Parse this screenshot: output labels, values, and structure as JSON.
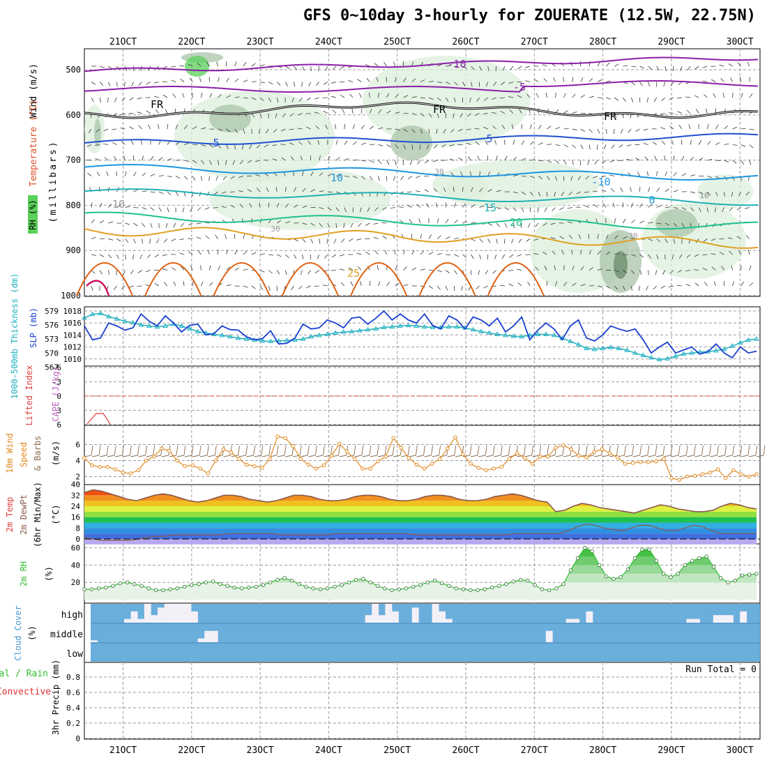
{
  "title": "GFS 0~10day 3-hourly for ZOUERATE (12.5W, 22.75N)",
  "date_ticks": [
    "21OCT",
    "22OCT",
    "23OCT",
    "24OCT",
    "25OCT",
    "26OCT",
    "27OCT",
    "28OCT",
    "29OCT",
    "30OCT"
  ],
  "colors": {
    "temp_cold": "#8a1ea8",
    "temp_zero": "#000000",
    "temp_5": "#1f4fd1",
    "temp_10": "#1e96e0",
    "temp_15": "#1fb2b5",
    "temp_20": "#20c090",
    "temp_25": "#e0a020",
    "temp_30": "#e06010",
    "temp_35": "#d01060",
    "rh_light": "#dcefdc",
    "rh_mid": "#a9c4a9",
    "rh_dark": "#6a8a6a",
    "rh_green": "#5ad05a",
    "slp": "#1a3fd0",
    "thickness": "#20b0c0",
    "wind10": "#e08820",
    "barb_brown": "#8a6a4a",
    "cloud": "#6aaedc",
    "rh2m": "#32c032"
  },
  "panels": {
    "upper_air": {
      "ylabel_wind": "Wind (m/s)",
      "ylabel_temp": "Temperature (°C)",
      "ylabel_rh": "RH (%)",
      "ylabel_mb": "(millibars)",
      "yticks": [
        "500",
        "600",
        "700",
        "800",
        "900",
        "1000"
      ],
      "contour_labels": [
        {
          "text": "-10"
        },
        {
          "text": "-5"
        },
        {
          "text": "FR"
        },
        {
          "text": "FR"
        },
        {
          "text": "FR"
        },
        {
          "text": "5"
        },
        {
          "text": "5"
        },
        {
          "text": "10"
        },
        {
          "text": "-10"
        },
        {
          "text": "10"
        },
        {
          "text": "15"
        },
        {
          "text": "20"
        },
        {
          "text": "25"
        },
        {
          "text": "0"
        },
        {
          "text": "30"
        },
        {
          "text": "30"
        },
        {
          "text": "30"
        },
        {
          "text": "10"
        }
      ]
    },
    "slp": {
      "ylabel_thk": "1000-500mb Thickness (dm)",
      "ylabel_slp": "SLP (mb)",
      "yticks_thk": [
        "579",
        "576",
        "573",
        "570",
        "567"
      ],
      "yticks_slp": [
        "1018",
        "1016",
        "1014",
        "1012",
        "1010"
      ]
    },
    "li": {
      "ylabel_li": "Lifted Index",
      "ylabel_cape": "CAPE (J/kg)",
      "yticks": [
        "-6",
        "-3",
        "0",
        "3",
        "6"
      ]
    },
    "wind10": {
      "ylabel_a": "10m Wind",
      "ylabel_b": "Speed",
      "ylabel_c": "& Barbs",
      "ylabel_unit": "(m/s)",
      "yticks": [
        "6",
        "4",
        "2"
      ]
    },
    "temp2m": {
      "ylabel_a": "2m Temp",
      "ylabel_b": "2m DewPt",
      "ylabel_c": "(6hr Min/Max)",
      "ylabel_unit": "(°C)",
      "yticks": [
        "40",
        "32",
        "24",
        "16",
        "8",
        "0"
      ]
    },
    "rh2m": {
      "ylabel": "2m RH",
      "ylabel_unit": "(%)",
      "yticks": [
        "60",
        "40",
        "20"
      ]
    },
    "cloud": {
      "ylabel": "Cloud Cover",
      "ylabel_unit": "(%)",
      "levels": [
        "high",
        "middle",
        "low"
      ]
    },
    "precip": {
      "ylabel_a": "Total / Rain",
      "ylabel_b": "Convective",
      "ylabel_c": "3hr Precip (mm)",
      "yticks": [
        "0.8",
        "0.6",
        "0.4",
        "0.2",
        "0"
      ],
      "run_total": "Run Total = 0"
    }
  },
  "chart_data": [
    {
      "type": "line",
      "title": "SLP (mb)",
      "x_unit": "3-hourly steps from 20 OCT 12Z",
      "ylim": [
        1009,
        1019
      ],
      "series": [
        {
          "name": "SLP (mb)",
          "values": [
            1015.5,
            1013.2,
            1013.5,
            1016.0,
            1015.5,
            1014.8,
            1015.2,
            1017.5,
            1016.3,
            1015.5,
            1017.2,
            1016.0,
            1014.5,
            1015.6,
            1015.8,
            1014.0,
            1014.2,
            1015.5,
            1014.9,
            1014.8,
            1013.7,
            1013.2,
            1013.4,
            1014.7,
            1012.5,
            1012.6,
            1013.5,
            1015.8,
            1015.0,
            1015.2,
            1016.5,
            1016.0,
            1015.2,
            1016.8,
            1017.0,
            1015.8,
            1016.8,
            1018.0,
            1016.5,
            1017.5,
            1016.5,
            1016.0,
            1017.5,
            1015.6,
            1015.0,
            1017.2,
            1016.5,
            1015.0,
            1017.0,
            1016.5,
            1015.5,
            1016.8,
            1014.5,
            1015.5,
            1017.0,
            1013.2,
            1014.8,
            1016.0,
            1015.0,
            1013.2,
            1015.5,
            1016.5,
            1013.5,
            1013.0,
            1014.0,
            1015.5,
            1015.0,
            1014.6,
            1015.0,
            1013.2,
            1011.0,
            1012.0,
            1012.8,
            1011.0,
            1011.5,
            1012.0,
            1010.8,
            1011.2,
            1012.5,
            1011.0,
            1010.2,
            1012.0,
            1011.0,
            1011.3
          ]
        },
        {
          "name": "1000-500mb Thickness (dm)",
          "values": [
            577.5,
            578.3,
            578.5,
            577.8,
            577.3,
            576.8,
            576.5,
            576.0,
            575.8,
            575.6,
            575.8,
            576.2,
            575.8,
            575.2,
            574.6,
            574.3,
            574.0,
            573.8,
            573.5,
            573.2,
            573.0,
            572.8,
            572.6,
            572.5,
            572.6,
            572.7,
            572.8,
            573.0,
            573.5,
            573.8,
            574.0,
            574.3,
            574.5,
            574.6,
            574.8,
            575.0,
            575.2,
            575.5,
            575.6,
            575.8,
            575.9,
            575.8,
            575.6,
            575.5,
            575.5,
            575.6,
            575.6,
            575.4,
            575.0,
            574.6,
            574.3,
            574.0,
            573.8,
            573.6,
            573.5,
            573.8,
            574.0,
            574.0,
            573.8,
            573.2,
            572.5,
            571.8,
            571.0,
            570.8,
            571.0,
            571.2,
            571.0,
            570.6,
            570.0,
            569.5,
            569.0,
            568.6,
            568.8,
            569.3,
            569.8,
            570.0,
            570.2,
            570.3,
            570.5,
            570.8,
            571.5,
            572.2,
            572.8,
            573.0
          ]
        }
      ]
    },
    {
      "type": "line",
      "title": "10m Wind Speed (m/s)",
      "ylim": [
        1,
        7.5
      ],
      "series": [
        {
          "name": "10m Wind Speed",
          "values": [
            4.3,
            3.4,
            3.2,
            3.2,
            2.9,
            2.5,
            2.4,
            2.8,
            4.0,
            4.5,
            5.5,
            5.2,
            4.0,
            3.3,
            3.4,
            3.0,
            2.4,
            4.0,
            5.4,
            5.0,
            4.2,
            3.5,
            3.3,
            3.1,
            4.2,
            7.0,
            6.8,
            5.8,
            4.2,
            3.5,
            3.0,
            3.4,
            4.6,
            6.1,
            5.1,
            4.2,
            3.0,
            3.0,
            3.9,
            4.5,
            6.8,
            5.6,
            4.3,
            3.5,
            3.0,
            3.6,
            4.2,
            5.5,
            6.9,
            4.8,
            3.6,
            3.1,
            2.8,
            3.0,
            3.2,
            4.2,
            4.9,
            4.3,
            3.6,
            4.5,
            4.5,
            5.6,
            5.9,
            5.4,
            4.6,
            4.4,
            5.1,
            5.4,
            4.9,
            4.4,
            3.6,
            3.7,
            3.8,
            3.8,
            3.9,
            4.2,
            1.8,
            1.6,
            2.0,
            2.1,
            2.3,
            2.5,
            2.9,
            1.8,
            2.8,
            2.3,
            2.0,
            2.3
          ]
        }
      ]
    },
    {
      "type": "area",
      "title": "2m Temp / DewPt (°C)",
      "ylim": [
        -3,
        40
      ],
      "series": [
        {
          "name": "2m Temp",
          "values": [
            34,
            36,
            35,
            33,
            31,
            29,
            28,
            30,
            32,
            33,
            32,
            30,
            28,
            27,
            28,
            30,
            32,
            32,
            31,
            29,
            28,
            27,
            28,
            30,
            32,
            32,
            31,
            29,
            28,
            28,
            29,
            31,
            32,
            32,
            31,
            29,
            28,
            28,
            29,
            31,
            32,
            32,
            31,
            29,
            28,
            28,
            29,
            31,
            32,
            33,
            32,
            30,
            28,
            27,
            20,
            21,
            24,
            26,
            25,
            23,
            22,
            21,
            20,
            19,
            21,
            23,
            25,
            24,
            22,
            21,
            20,
            20,
            21,
            24,
            26,
            25,
            23,
            22
          ]
        },
        {
          "name": "2m DewPt",
          "values": [
            1,
            0,
            -1,
            -1,
            -1,
            -1,
            0,
            1,
            2,
            2,
            3,
            3,
            3,
            3,
            3,
            3,
            4,
            4,
            4,
            4,
            4,
            4,
            3,
            3,
            3,
            3,
            3,
            3,
            4,
            4,
            4,
            4,
            4,
            4,
            4,
            4,
            4,
            3,
            3,
            3,
            3,
            3,
            3,
            3,
            3,
            3,
            3,
            3,
            4,
            4,
            4,
            4,
            4,
            4,
            6,
            9,
            11,
            10,
            8,
            7,
            6,
            8,
            10,
            10,
            8,
            6,
            6,
            8,
            10,
            9,
            6,
            4,
            4,
            4,
            4,
            4
          ]
        }
      ]
    },
    {
      "type": "area",
      "title": "2m RH (%)",
      "ylim": [
        0,
        65
      ],
      "series": [
        {
          "name": "2m RH",
          "values": [
            12,
            12,
            13,
            14,
            16,
            19,
            20,
            18,
            16,
            13,
            11,
            11,
            12,
            13,
            15,
            17,
            18,
            20,
            21,
            18,
            16,
            14,
            13,
            14,
            15,
            17,
            20,
            23,
            25,
            22,
            18,
            15,
            13,
            12,
            13,
            15,
            17,
            20,
            23,
            24,
            20,
            16,
            13,
            11,
            12,
            13,
            15,
            17,
            20,
            22,
            19,
            16,
            13,
            12,
            11,
            11,
            12,
            14,
            16,
            18,
            21,
            23,
            22,
            17,
            12,
            11,
            13,
            18,
            34,
            48,
            60,
            56,
            40,
            27,
            24,
            26,
            35,
            48,
            58,
            58,
            45,
            30,
            26,
            30,
            40,
            45,
            48,
            50,
            38,
            25,
            20,
            22,
            28,
            29,
            30
          ]
        }
      ]
    },
    {
      "type": "bar",
      "title": "Cloud Cover (%)",
      "series": [
        {
          "name": "high",
          "values": [
            0,
            0,
            0,
            0,
            0,
            20,
            60,
            20,
            100,
            40,
            80,
            100,
            100,
            100,
            100,
            60,
            0,
            0,
            0,
            0,
            0,
            0,
            0,
            0,
            0,
            0,
            0,
            0,
            0,
            0,
            0,
            0,
            0,
            0,
            0,
            0,
            0,
            0,
            0,
            0,
            0,
            40,
            100,
            40,
            100,
            60,
            0,
            0,
            80,
            0,
            0,
            100,
            60,
            20,
            0,
            0,
            0,
            0,
            0,
            0,
            0,
            0,
            0,
            0,
            0,
            0,
            0,
            0,
            0,
            0,
            0,
            20,
            20,
            0,
            60,
            0,
            0,
            0,
            0,
            0,
            0,
            0,
            0,
            0,
            0,
            0,
            0,
            0,
            0,
            20,
            20,
            0,
            0,
            40,
            40,
            40,
            0,
            60,
            0,
            0
          ]
        },
        {
          "name": "middle",
          "values": [
            10,
            0,
            0,
            0,
            0,
            0,
            0,
            0,
            0,
            0,
            0,
            0,
            0,
            0,
            0,
            0,
            20,
            60,
            60,
            0,
            0,
            0,
            0,
            0,
            0,
            0,
            0,
            0,
            0,
            0,
            0,
            0,
            0,
            0,
            0,
            0,
            0,
            0,
            0,
            0,
            0,
            0,
            0,
            0,
            0,
            0,
            0,
            0,
            0,
            0,
            0,
            0,
            0,
            0,
            0,
            0,
            0,
            0,
            0,
            0,
            0,
            0,
            0,
            0,
            0,
            0,
            0,
            0,
            60,
            0,
            0,
            0,
            0,
            0,
            0,
            0,
            0,
            0,
            0,
            0,
            0,
            0,
            0,
            0,
            0,
            0,
            0,
            0,
            0,
            0,
            0,
            0,
            0,
            0,
            0,
            0,
            0,
            0,
            0,
            0
          ]
        },
        {
          "name": "low",
          "values": [
            0,
            0,
            0,
            0,
            0,
            0,
            0,
            0,
            0,
            0,
            0,
            0,
            0,
            0,
            0,
            0,
            0,
            0,
            0,
            0,
            0,
            0,
            0,
            0,
            0,
            0,
            0,
            0,
            0,
            0,
            0,
            0,
            0,
            0,
            0,
            0,
            0,
            0,
            0,
            0,
            0,
            0,
            0,
            0,
            0,
            0,
            0,
            0,
            0,
            0,
            0,
            0,
            0,
            0,
            0,
            0,
            0,
            0,
            0,
            0,
            0,
            0,
            0,
            0,
            0,
            0,
            0,
            0,
            0,
            0,
            0,
            0,
            0,
            0,
            0,
            0,
            0,
            0,
            0,
            0,
            0,
            0,
            0,
            0,
            0,
            0,
            0,
            0,
            0,
            0,
            0,
            0,
            0,
            0,
            0,
            0,
            0,
            0,
            0,
            0
          ]
        }
      ]
    },
    {
      "type": "bar",
      "title": "3hr Precip (mm)",
      "ylim": [
        0,
        1
      ],
      "series": [
        {
          "name": "3hr Precip (mm)",
          "values": [
            0,
            0,
            0,
            0,
            0,
            0,
            0,
            0,
            0,
            0
          ]
        }
      ]
    }
  ]
}
